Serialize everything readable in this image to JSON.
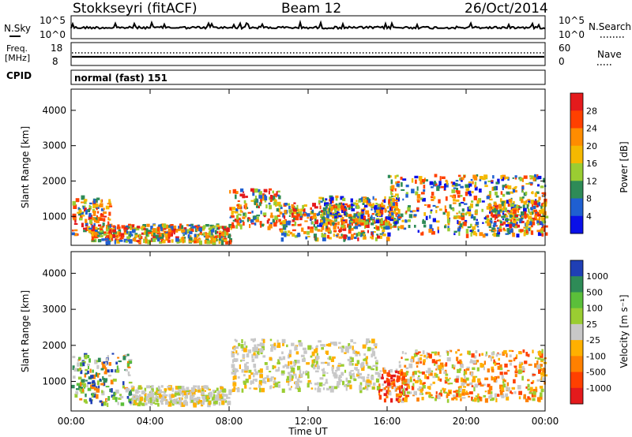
{
  "header": {
    "station": "Stokkseyri (fitACF)",
    "beam": "Beam 12",
    "date": "26/Oct/2014"
  },
  "top_panels": {
    "nsky_label": "N.Sky",
    "nsky_tick_top": "10^5",
    "nsky_tick_bottom": "10^0",
    "nsearch_label": "N.Search",
    "nsearch_tick_top": "10^5",
    "nsearch_tick_bottom": "10^0",
    "freq_label_1": "Freq.",
    "freq_label_2": "[MHz]",
    "freq_tick_top": "18",
    "freq_tick_bottom": "8",
    "nave_label": "Nave",
    "nave_tick_top": "60",
    "nave_tick_bottom": "0",
    "cpid_label": "CPID",
    "cpid_value": "normal (fast) 151"
  },
  "chart_data": [
    {
      "type": "heatmap",
      "ylabel": "Slant Range [km]",
      "xlabel": "",
      "xlim": [
        0,
        24
      ],
      "ylim": [
        180,
        4600
      ],
      "yticks": [
        1000,
        2000,
        3000,
        4000
      ],
      "ytick_labels": [
        "1000",
        "2000",
        "3000",
        "4000"
      ],
      "colorbar": {
        "label": "Power [dB]",
        "tick_labels": [
          "28",
          "24",
          "20",
          "16",
          "12",
          "8",
          "4"
        ],
        "colors": [
          "#e41a1c",
          "#ff4000",
          "#ff8c00",
          "#f5b800",
          "#9acd32",
          "#2e8b57",
          "#1f5fd1",
          "#0a10e8"
        ]
      },
      "scatter_regions": [
        {
          "t0": 0.0,
          "t1": 2.0,
          "r0": 500,
          "r1": 1600,
          "level": "high"
        },
        {
          "t0": 1.0,
          "t1": 8.0,
          "r0": 300,
          "r1": 800,
          "level": "high"
        },
        {
          "t0": 8.0,
          "t1": 10.5,
          "r0": 700,
          "r1": 1800,
          "level": "high"
        },
        {
          "t0": 10.5,
          "t1": 16.0,
          "r0": 400,
          "r1": 1400,
          "level": "high"
        },
        {
          "t0": 12.5,
          "t1": 16.5,
          "r0": 800,
          "r1": 1600,
          "level": "mid"
        },
        {
          "t0": 16.0,
          "t1": 24.0,
          "r0": 500,
          "r1": 2200,
          "level": "mid"
        },
        {
          "t0": 21.0,
          "t1": 24.0,
          "r0": 600,
          "r1": 1500,
          "level": "high"
        }
      ]
    },
    {
      "type": "heatmap",
      "ylabel": "Slant Range [km]",
      "xlabel": "Time UT",
      "xlim": [
        0,
        24
      ],
      "ylim": [
        180,
        4600
      ],
      "yticks": [
        1000,
        2000,
        3000,
        4000
      ],
      "ytick_labels": [
        "1000",
        "2000",
        "3000",
        "4000"
      ],
      "xticks": [
        0,
        4,
        8,
        12,
        16,
        20,
        24
      ],
      "xtick_labels": [
        "00:00",
        "04:00",
        "08:00",
        "12:00",
        "16:00",
        "20:00",
        "00:00"
      ],
      "colorbar": {
        "label": "Velocity [m s⁻¹]",
        "tick_labels": [
          "1000",
          "500",
          "100",
          "25",
          "-25",
          "-100",
          "-500",
          "-1000"
        ],
        "colors": [
          "#1f3fb5",
          "#2e8b57",
          "#5bbf3a",
          "#9acd32",
          "#c8c8c8",
          "#ffb000",
          "#ff8000",
          "#ff4000",
          "#e41a1c"
        ]
      },
      "scatter_regions": [
        {
          "t0": 0.0,
          "t1": 3.0,
          "r0": 400,
          "r1": 1800,
          "level": "positive"
        },
        {
          "t0": 3.0,
          "t1": 8.0,
          "r0": 400,
          "r1": 900,
          "level": "zero"
        },
        {
          "t0": 8.0,
          "t1": 15.5,
          "r0": 800,
          "r1": 2200,
          "level": "zero"
        },
        {
          "t0": 15.5,
          "t1": 17.0,
          "r0": 500,
          "r1": 1400,
          "level": "negative"
        },
        {
          "t0": 16.5,
          "t1": 24.0,
          "r0": 500,
          "r1": 1900,
          "level": "moderate_negative"
        }
      ]
    }
  ]
}
